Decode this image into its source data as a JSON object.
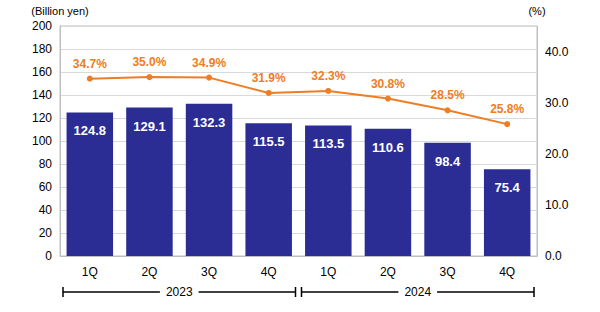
{
  "chart_data": {
    "type": "bar",
    "y_label": "(Billion yen)",
    "y2_label": "(%)",
    "categories": [
      "1Q",
      "2Q",
      "3Q",
      "4Q",
      "1Q",
      "2Q",
      "3Q",
      "4Q"
    ],
    "groups": [
      {
        "label": "2023",
        "count": 4
      },
      {
        "label": "2024",
        "count": 4
      }
    ],
    "ylim": [
      0,
      200
    ],
    "yticks": [
      0,
      20,
      40,
      60,
      80,
      100,
      120,
      140,
      160,
      180,
      200
    ],
    "y2lim": [
      0,
      45
    ],
    "y2ticks": [
      {
        "value": 0,
        "label": "0.0"
      },
      {
        "value": 10,
        "label": "10.0"
      },
      {
        "value": 20,
        "label": "20.0"
      },
      {
        "value": 30,
        "label": "30.0"
      },
      {
        "value": 40,
        "label": "40.0"
      }
    ],
    "grid": true,
    "data_labels": true,
    "series": [
      {
        "type": "bar",
        "color": "#2b2d94",
        "values": [
          124.8,
          129.1,
          132.3,
          115.5,
          113.5,
          110.6,
          98.4,
          75.4
        ]
      },
      {
        "type": "line",
        "axis": "y2",
        "color": "#ee7d24",
        "marker": "circle",
        "values": [
          34.7,
          35.0,
          34.9,
          31.9,
          32.3,
          30.8,
          28.5,
          25.8
        ],
        "value_labels": [
          "34.7%",
          "35.0%",
          "34.9%",
          "31.9%",
          "32.3%",
          "30.8%",
          "28.5%",
          "25.8%"
        ]
      }
    ]
  }
}
